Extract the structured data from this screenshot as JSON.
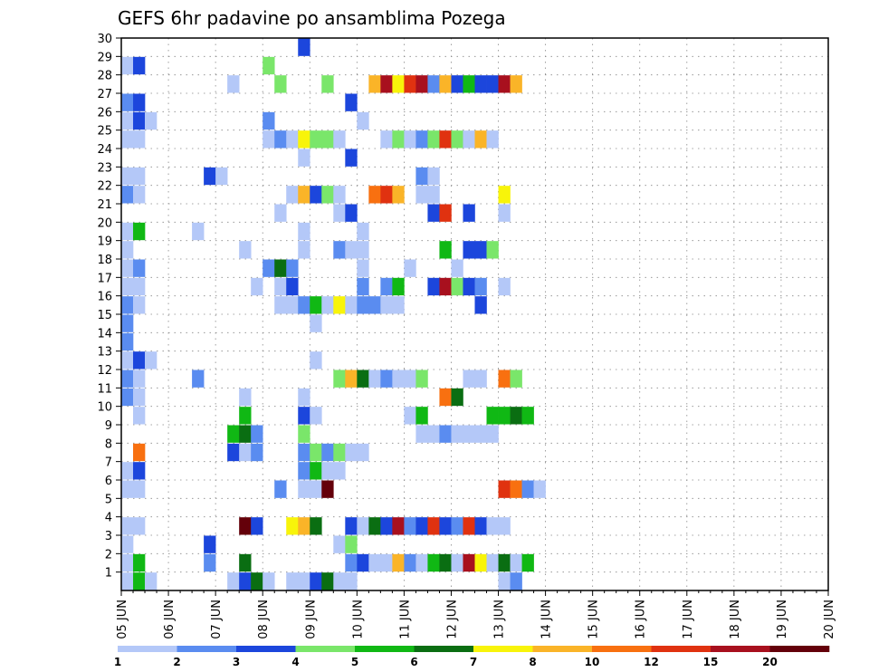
{
  "chart_data": {
    "type": "heatmap",
    "title": "GEFS 6hr padavine po ansamblima Pozega",
    "xlabel": "",
    "ylabel": "",
    "x_ticks": [
      "05 JUN",
      "06 JUN",
      "07 JUN",
      "08 JUN",
      "09 JUN",
      "10 JUN",
      "11 JUN",
      "12 JUN",
      "13 JUN",
      "14 JUN",
      "15 JUN",
      "16 JUN",
      "17 JUN",
      "18 JUN",
      "19 JUN",
      "20 JUN"
    ],
    "y_ticks": [
      "1",
      "2",
      "3",
      "4",
      "5",
      "6",
      "7",
      "8",
      "9",
      "10",
      "11",
      "12",
      "13",
      "14",
      "15",
      "16",
      "17",
      "18",
      "19",
      "20",
      "21",
      "22",
      "23",
      "24",
      "25",
      "26",
      "27",
      "28",
      "29",
      "30"
    ],
    "x_range": [
      0,
      60
    ],
    "y_range": [
      0,
      30
    ],
    "grid": true,
    "x_unit": "6-hour steps from 05 JUN",
    "y_unit": "ensemble member",
    "legend": {
      "placement": "bottom",
      "thresholds": [
        "1",
        "2",
        "3",
        "4",
        "5",
        "6",
        "7",
        "8",
        "10",
        "12",
        "15",
        "20"
      ],
      "colors": [
        "#b4c8f8",
        "#5a8cf0",
        "#1c46dc",
        "#7ae66a",
        "#10b814",
        "#0a6e12",
        "#f8f40a",
        "#fab428",
        "#f87010",
        "#e03210",
        "#a8101e",
        "#64000a"
      ]
    },
    "cells": [
      [
        1,
        29,
        0
      ],
      [
        2,
        29,
        2
      ],
      [
        13,
        29,
        3
      ],
      [
        16,
        30,
        2
      ],
      [
        10,
        28,
        0
      ],
      [
        14,
        28,
        3
      ],
      [
        18,
        28,
        3
      ],
      [
        22,
        28,
        7
      ],
      [
        23,
        28,
        10
      ],
      [
        24,
        28,
        6
      ],
      [
        25,
        28,
        9
      ],
      [
        26,
        28,
        10
      ],
      [
        27,
        28,
        1
      ],
      [
        28,
        28,
        7
      ],
      [
        29,
        28,
        2
      ],
      [
        30,
        28,
        4
      ],
      [
        31,
        28,
        2
      ],
      [
        32,
        28,
        2
      ],
      [
        33,
        28,
        10
      ],
      [
        34,
        28,
        7
      ],
      [
        1,
        27,
        1
      ],
      [
        2,
        27,
        2
      ],
      [
        20,
        27,
        2
      ],
      [
        1,
        26,
        0
      ],
      [
        2,
        26,
        2
      ],
      [
        3,
        26,
        0
      ],
      [
        13,
        26,
        1
      ],
      [
        21,
        26,
        0
      ],
      [
        1,
        25,
        0
      ],
      [
        2,
        25,
        0
      ],
      [
        13,
        25,
        0
      ],
      [
        14,
        25,
        1
      ],
      [
        15,
        25,
        0
      ],
      [
        16,
        25,
        6
      ],
      [
        17,
        25,
        3
      ],
      [
        18,
        25,
        3
      ],
      [
        19,
        25,
        0
      ],
      [
        23,
        25,
        0
      ],
      [
        24,
        25,
        3
      ],
      [
        25,
        25,
        0
      ],
      [
        26,
        25,
        1
      ],
      [
        27,
        25,
        3
      ],
      [
        28,
        25,
        9
      ],
      [
        29,
        25,
        3
      ],
      [
        30,
        25,
        0
      ],
      [
        31,
        25,
        7
      ],
      [
        32,
        25,
        0
      ],
      [
        16,
        24,
        0
      ],
      [
        20,
        24,
        2
      ],
      [
        1,
        23,
        0
      ],
      [
        2,
        23,
        0
      ],
      [
        8,
        23,
        2
      ],
      [
        9,
        23,
        0
      ],
      [
        26,
        23,
        1
      ],
      [
        27,
        23,
        0
      ],
      [
        1,
        22,
        1
      ],
      [
        2,
        22,
        0
      ],
      [
        15,
        22,
        0
      ],
      [
        16,
        22,
        7
      ],
      [
        17,
        22,
        2
      ],
      [
        18,
        22,
        3
      ],
      [
        19,
        22,
        0
      ],
      [
        22,
        22,
        8
      ],
      [
        23,
        22,
        9
      ],
      [
        24,
        22,
        7
      ],
      [
        26,
        22,
        0
      ],
      [
        27,
        22,
        0
      ],
      [
        33,
        22,
        6
      ],
      [
        14,
        21,
        0
      ],
      [
        19,
        21,
        0
      ],
      [
        20,
        21,
        2
      ],
      [
        27,
        21,
        2
      ],
      [
        28,
        21,
        9
      ],
      [
        30,
        21,
        2
      ],
      [
        33,
        21,
        0
      ],
      [
        1,
        20,
        0
      ],
      [
        2,
        20,
        4
      ],
      [
        7,
        20,
        0
      ],
      [
        16,
        20,
        0
      ],
      [
        21,
        20,
        0
      ],
      [
        1,
        19,
        0
      ],
      [
        11,
        19,
        0
      ],
      [
        16,
        19,
        0
      ],
      [
        19,
        19,
        1
      ],
      [
        20,
        19,
        0
      ],
      [
        21,
        19,
        0
      ],
      [
        28,
        19,
        4
      ],
      [
        30,
        19,
        2
      ],
      [
        31,
        19,
        2
      ],
      [
        32,
        19,
        3
      ],
      [
        1,
        18,
        0
      ],
      [
        2,
        18,
        1
      ],
      [
        13,
        18,
        1
      ],
      [
        14,
        18,
        5
      ],
      [
        15,
        18,
        1
      ],
      [
        21,
        18,
        0
      ],
      [
        25,
        18,
        0
      ],
      [
        29,
        18,
        0
      ],
      [
        1,
        17,
        0
      ],
      [
        2,
        17,
        0
      ],
      [
        12,
        17,
        0
      ],
      [
        14,
        17,
        0
      ],
      [
        15,
        17,
        2
      ],
      [
        21,
        17,
        1
      ],
      [
        23,
        17,
        1
      ],
      [
        24,
        17,
        4
      ],
      [
        27,
        17,
        2
      ],
      [
        28,
        17,
        10
      ],
      [
        29,
        17,
        3
      ],
      [
        30,
        17,
        2
      ],
      [
        31,
        17,
        1
      ],
      [
        33,
        17,
        0
      ],
      [
        1,
        16,
        1
      ],
      [
        2,
        16,
        0
      ],
      [
        14,
        16,
        0
      ],
      [
        15,
        16,
        0
      ],
      [
        16,
        16,
        1
      ],
      [
        17,
        16,
        4
      ],
      [
        18,
        16,
        0
      ],
      [
        19,
        16,
        6
      ],
      [
        20,
        16,
        0
      ],
      [
        21,
        16,
        1
      ],
      [
        22,
        16,
        1
      ],
      [
        23,
        16,
        0
      ],
      [
        24,
        16,
        0
      ],
      [
        31,
        16,
        2
      ],
      [
        1,
        15,
        1
      ],
      [
        17,
        15,
        0
      ],
      [
        1,
        14,
        1
      ],
      [
        1,
        13,
        0
      ],
      [
        2,
        13,
        2
      ],
      [
        3,
        13,
        0
      ],
      [
        17,
        13,
        0
      ],
      [
        1,
        12,
        1
      ],
      [
        2,
        12,
        0
      ],
      [
        7,
        12,
        1
      ],
      [
        19,
        12,
        3
      ],
      [
        20,
        12,
        7
      ],
      [
        21,
        12,
        5
      ],
      [
        22,
        12,
        0
      ],
      [
        23,
        12,
        1
      ],
      [
        24,
        12,
        0
      ],
      [
        25,
        12,
        0
      ],
      [
        26,
        12,
        3
      ],
      [
        30,
        12,
        0
      ],
      [
        31,
        12,
        0
      ],
      [
        33,
        12,
        8
      ],
      [
        34,
        12,
        3
      ],
      [
        1,
        11,
        1
      ],
      [
        2,
        11,
        0
      ],
      [
        11,
        11,
        0
      ],
      [
        16,
        11,
        0
      ],
      [
        28,
        11,
        8
      ],
      [
        29,
        11,
        5
      ],
      [
        2,
        10,
        0
      ],
      [
        11,
        10,
        4
      ],
      [
        16,
        10,
        2
      ],
      [
        17,
        10,
        0
      ],
      [
        25,
        10,
        0
      ],
      [
        26,
        10,
        4
      ],
      [
        32,
        10,
        4
      ],
      [
        33,
        10,
        4
      ],
      [
        34,
        10,
        5
      ],
      [
        35,
        10,
        4
      ],
      [
        10,
        9,
        4
      ],
      [
        11,
        9,
        5
      ],
      [
        12,
        9,
        1
      ],
      [
        16,
        9,
        3
      ],
      [
        26,
        9,
        0
      ],
      [
        27,
        9,
        0
      ],
      [
        28,
        9,
        1
      ],
      [
        29,
        9,
        0
      ],
      [
        30,
        9,
        0
      ],
      [
        31,
        9,
        0
      ],
      [
        32,
        9,
        0
      ],
      [
        2,
        8,
        8
      ],
      [
        10,
        8,
        2
      ],
      [
        11,
        8,
        0
      ],
      [
        12,
        8,
        1
      ],
      [
        16,
        8,
        1
      ],
      [
        17,
        8,
        3
      ],
      [
        18,
        8,
        1
      ],
      [
        19,
        8,
        3
      ],
      [
        20,
        8,
        0
      ],
      [
        21,
        8,
        0
      ],
      [
        1,
        7,
        0
      ],
      [
        2,
        7,
        2
      ],
      [
        16,
        7,
        1
      ],
      [
        17,
        7,
        4
      ],
      [
        18,
        7,
        0
      ],
      [
        19,
        7,
        0
      ],
      [
        1,
        6,
        0
      ],
      [
        2,
        6,
        0
      ],
      [
        14,
        6,
        1
      ],
      [
        16,
        6,
        0
      ],
      [
        17,
        6,
        0
      ],
      [
        18,
        6,
        11
      ],
      [
        33,
        6,
        9
      ],
      [
        34,
        6,
        8
      ],
      [
        35,
        6,
        1
      ],
      [
        36,
        6,
        0
      ],
      [
        1,
        4,
        0
      ],
      [
        2,
        4,
        0
      ],
      [
        11,
        4,
        11
      ],
      [
        12,
        4,
        2
      ],
      [
        15,
        4,
        6
      ],
      [
        16,
        4,
        7
      ],
      [
        17,
        4,
        5
      ],
      [
        20,
        4,
        2
      ],
      [
        21,
        4,
        0
      ],
      [
        22,
        4,
        5
      ],
      [
        23,
        4,
        2
      ],
      [
        24,
        4,
        10
      ],
      [
        25,
        4,
        1
      ],
      [
        26,
        4,
        2
      ],
      [
        27,
        4,
        9
      ],
      [
        28,
        4,
        2
      ],
      [
        29,
        4,
        1
      ],
      [
        30,
        4,
        9
      ],
      [
        31,
        4,
        2
      ],
      [
        32,
        4,
        0
      ],
      [
        33,
        4,
        0
      ],
      [
        1,
        3,
        0
      ],
      [
        8,
        3,
        2
      ],
      [
        19,
        3,
        0
      ],
      [
        20,
        3,
        3
      ],
      [
        1,
        2,
        0
      ],
      [
        2,
        2,
        4
      ],
      [
        8,
        2,
        1
      ],
      [
        11,
        2,
        5
      ],
      [
        20,
        2,
        1
      ],
      [
        21,
        2,
        2
      ],
      [
        22,
        2,
        0
      ],
      [
        23,
        2,
        0
      ],
      [
        24,
        2,
        7
      ],
      [
        25,
        2,
        1
      ],
      [
        26,
        2,
        0
      ],
      [
        27,
        2,
        4
      ],
      [
        28,
        2,
        5
      ],
      [
        29,
        2,
        0
      ],
      [
        30,
        2,
        10
      ],
      [
        31,
        2,
        6
      ],
      [
        32,
        2,
        0
      ],
      [
        33,
        2,
        5
      ],
      [
        34,
        2,
        0
      ],
      [
        35,
        2,
        4
      ],
      [
        1,
        1,
        0
      ],
      [
        2,
        1,
        4
      ],
      [
        3,
        1,
        0
      ],
      [
        10,
        1,
        0
      ],
      [
        11,
        1,
        2
      ],
      [
        12,
        1,
        5
      ],
      [
        13,
        1,
        0
      ],
      [
        15,
        1,
        0
      ],
      [
        16,
        1,
        0
      ],
      [
        17,
        1,
        2
      ],
      [
        18,
        1,
        5
      ],
      [
        19,
        1,
        0
      ],
      [
        20,
        1,
        0
      ],
      [
        33,
        1,
        0
      ],
      [
        34,
        1,
        1
      ]
    ]
  }
}
